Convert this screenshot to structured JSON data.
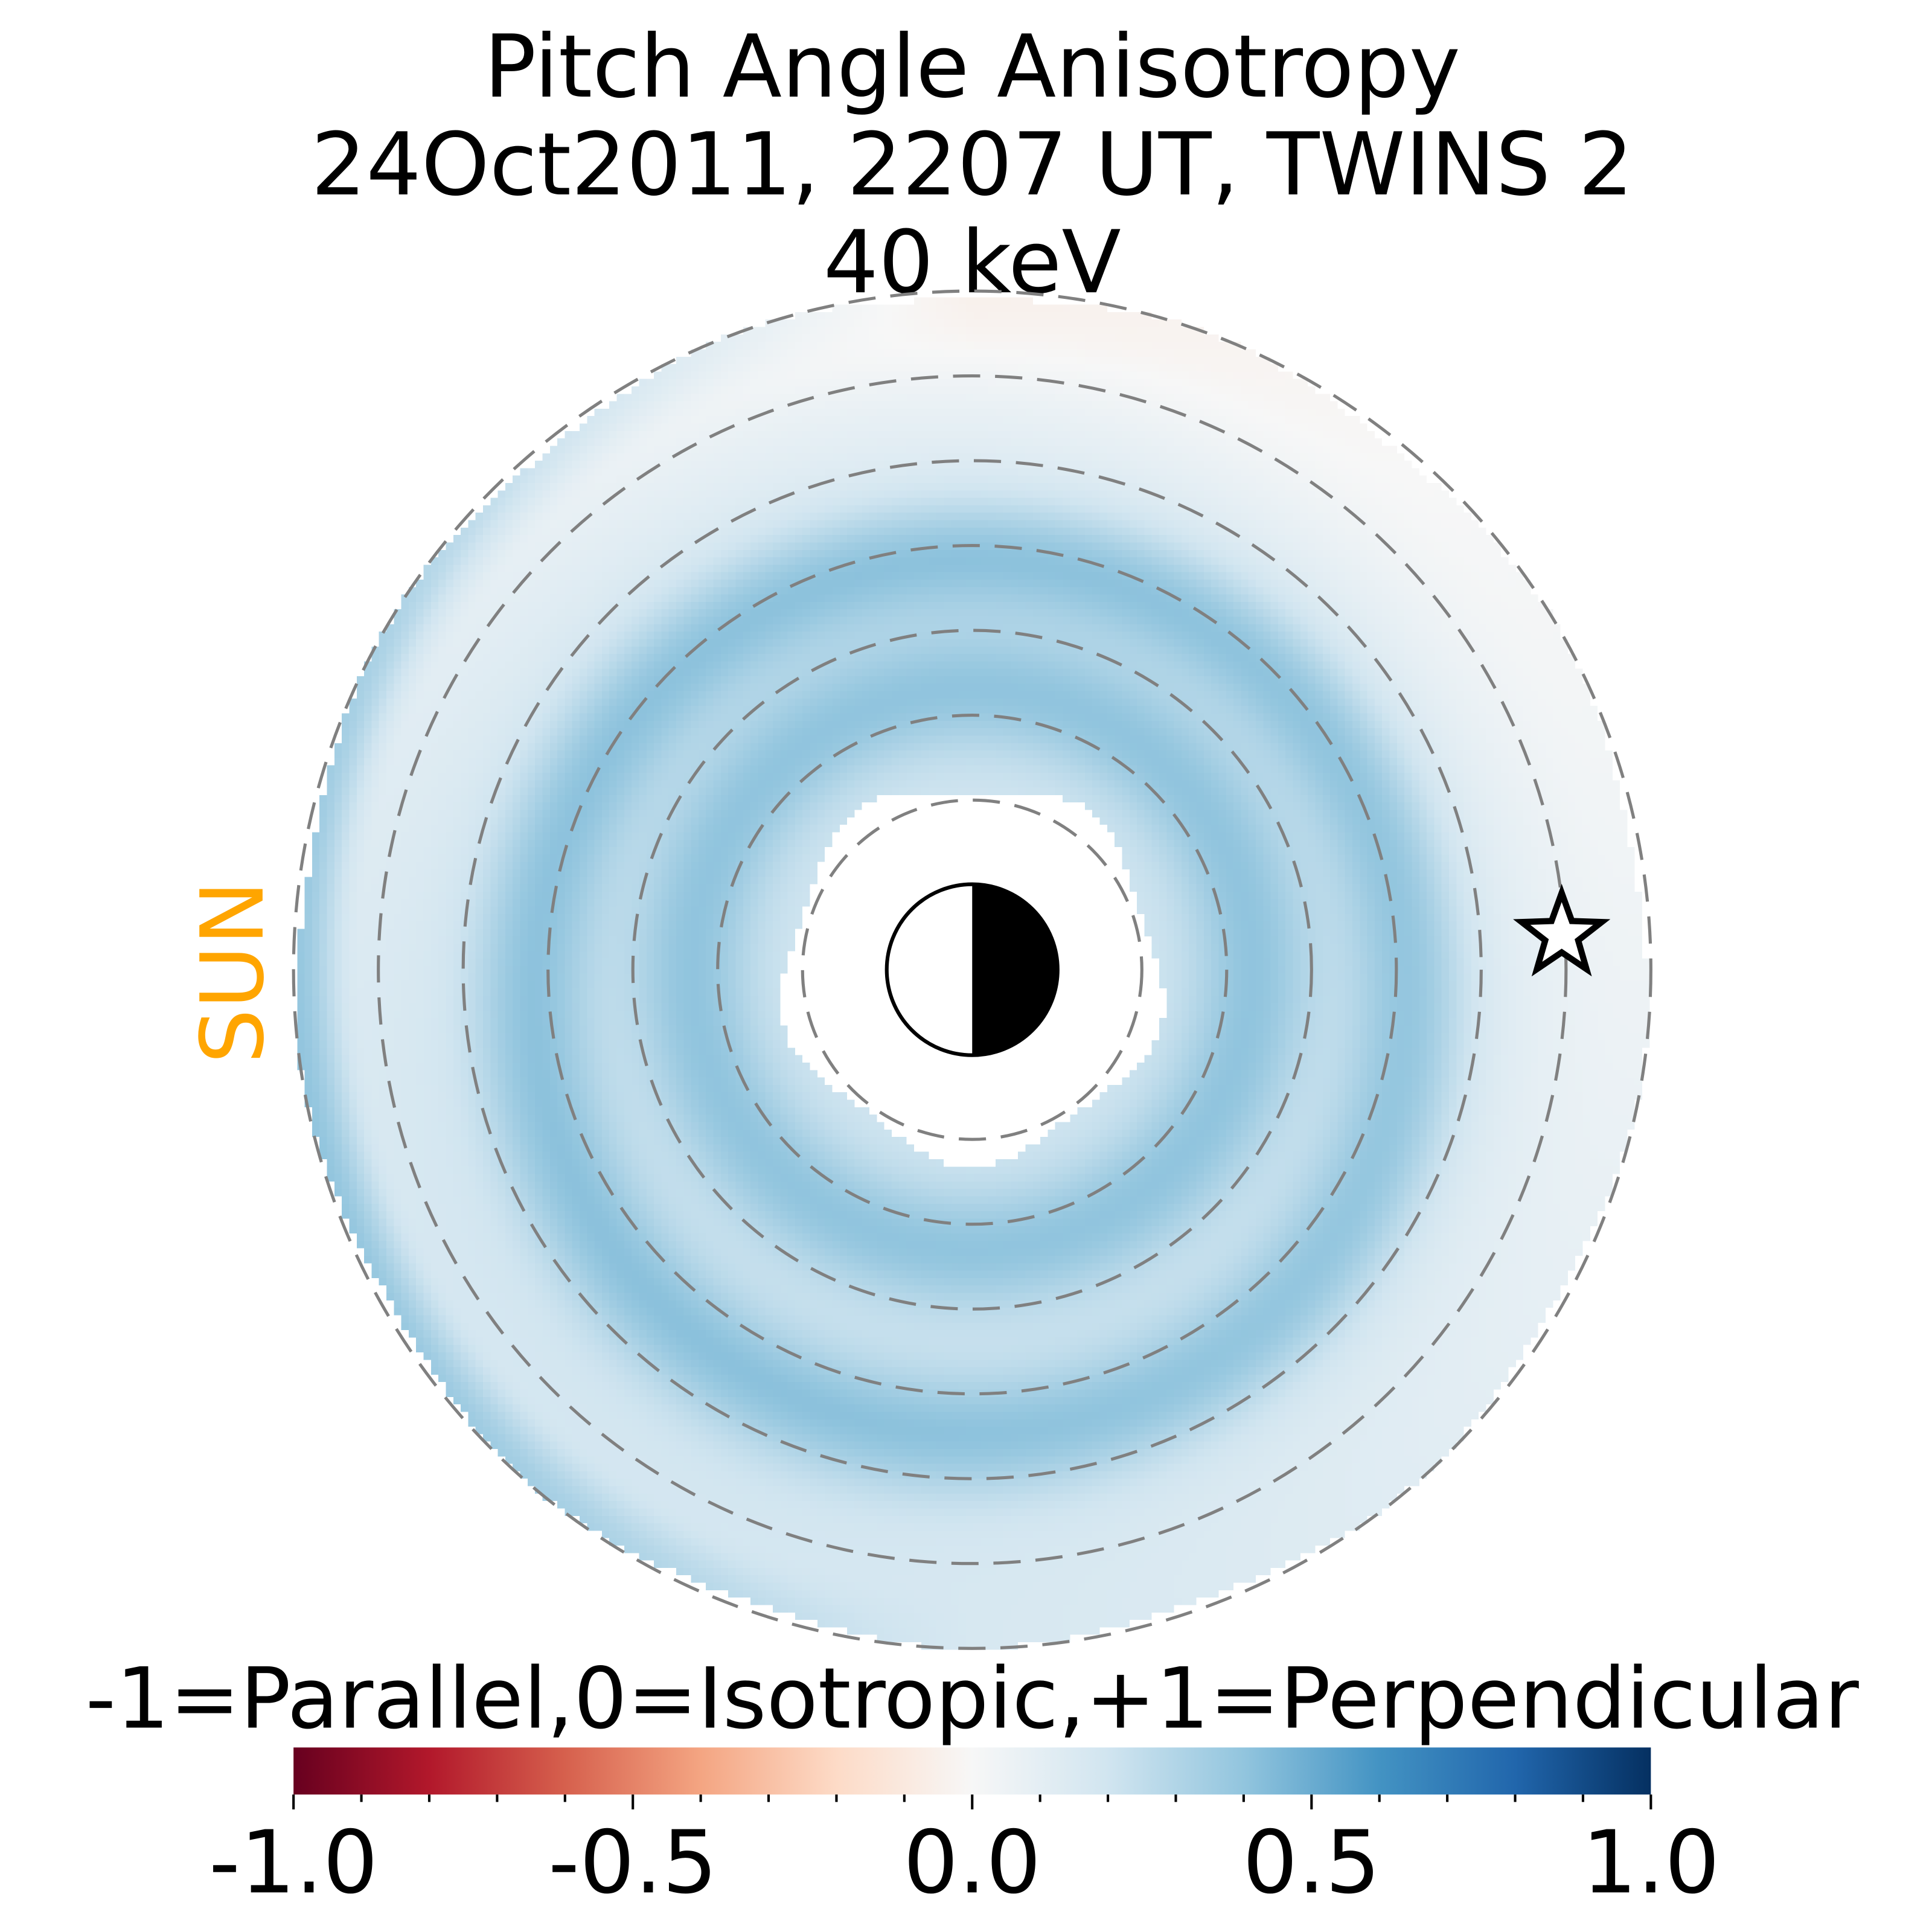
{
  "chart_data": {
    "type": "heatmap",
    "title": [
      "Pitch Angle Anisotropy",
      "24Oct2011, 2207 UT,  TWINS 2",
      "40 keV"
    ],
    "projection": "polar equatorial map, sun to the left",
    "radial_grid_RE": [
      2,
      3,
      4,
      5,
      6,
      7,
      8
    ],
    "data_radial_range_RE": [
      2.2,
      8
    ],
    "sun_label": "SUN",
    "colorbar": {
      "label": "-1=Parallel,0=Isotropic,+1=Perpendicular",
      "range": [
        -1.0,
        1.0
      ],
      "ticks": [
        -1.0,
        -0.5,
        0.0,
        0.5,
        1.0
      ],
      "tick_labels": [
        "-1.0",
        "-0.5",
        "0.0",
        "0.5",
        "1.0"
      ],
      "colormap": "RdBu",
      "colors": [
        "#67001f",
        "#b2182b",
        "#d6604d",
        "#f4a582",
        "#fddbc7",
        "#f7f7f7",
        "#d1e5f0",
        "#92c5de",
        "#4393c3",
        "#2166ac",
        "#053061"
      ]
    },
    "features": {
      "inner_band_RE": 3.3,
      "inner_band_value": 0.45,
      "outer_band_RE": 5.2,
      "outer_band_value": 0.45,
      "nightside_outer_value": 0.0,
      "dayside_edge_value": 0.55
    },
    "marker": "star"
  }
}
